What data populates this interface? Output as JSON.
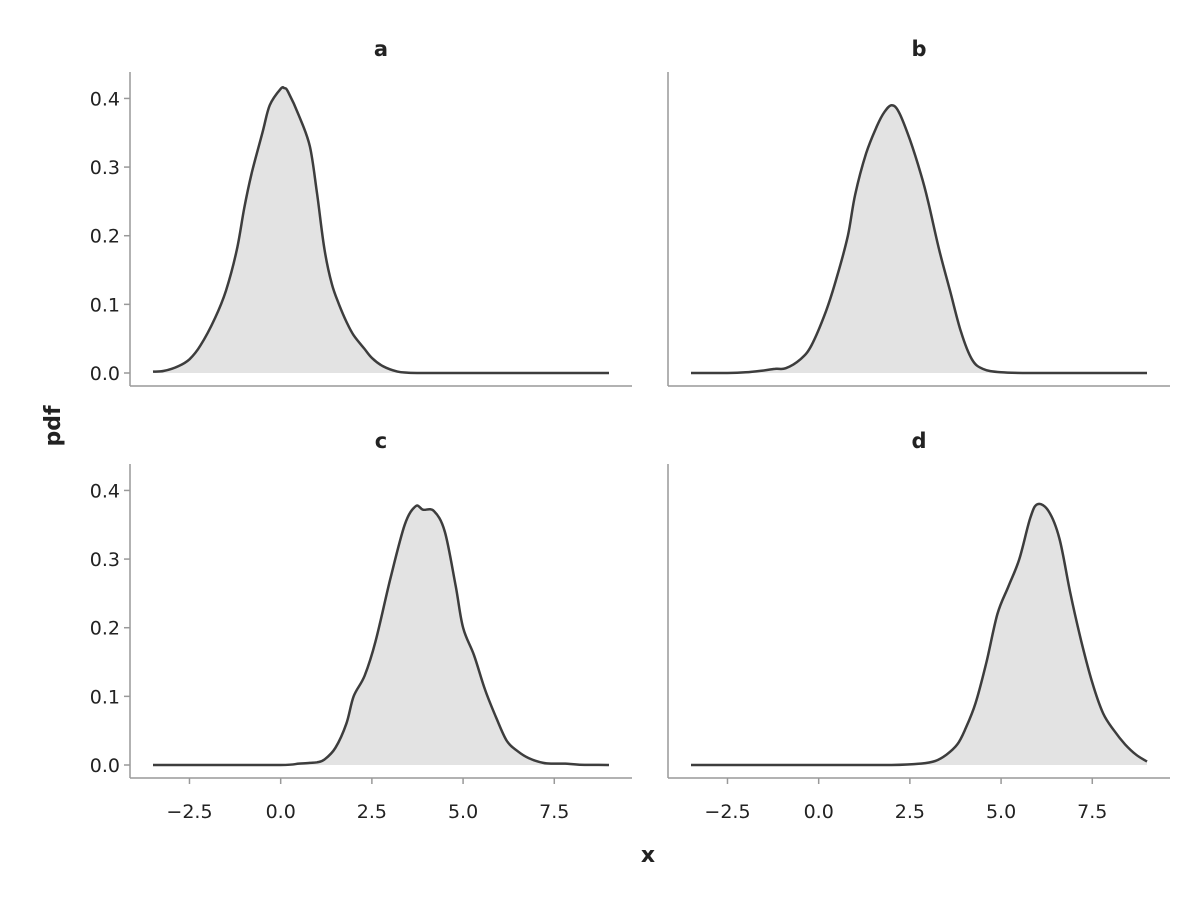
{
  "chart_data": {
    "type": "area",
    "xlabel": "x",
    "ylabel": "pdf",
    "xlim": [
      -3.5,
      9.0
    ],
    "ylim": [
      0.0,
      0.42
    ],
    "x_ticks": [
      -2.5,
      0.0,
      2.5,
      5.0,
      7.5
    ],
    "x_tick_labels": [
      "−2.5",
      "0.0",
      "2.5",
      "5.0",
      "7.5"
    ],
    "y_ticks": [
      0.0,
      0.1,
      0.2,
      0.3,
      0.4
    ],
    "y_tick_labels": [
      "0.0",
      "0.1",
      "0.2",
      "0.3",
      "0.4"
    ],
    "grid": false,
    "colors": {
      "fill": "#e3e3e3",
      "line": "#3d3d3d",
      "axis": "#999999"
    },
    "panels": [
      {
        "title": "a",
        "x": [
          -3.5,
          -3.2,
          -2.8,
          -2.5,
          -2.2,
          -1.8,
          -1.5,
          -1.2,
          -1.0,
          -0.8,
          -0.5,
          -0.3,
          0.0,
          0.1,
          0.2,
          0.5,
          0.8,
          1.0,
          1.2,
          1.4,
          1.6,
          1.8,
          2.0,
          2.3,
          2.5,
          2.8,
          3.2,
          3.5,
          4.0,
          5.0,
          6.0,
          7.0,
          8.0,
          9.0
        ],
        "y": [
          0.002,
          0.003,
          0.01,
          0.02,
          0.04,
          0.08,
          0.12,
          0.18,
          0.24,
          0.29,
          0.35,
          0.39,
          0.414,
          0.415,
          0.41,
          0.375,
          0.33,
          0.26,
          0.18,
          0.13,
          0.1,
          0.075,
          0.055,
          0.035,
          0.022,
          0.01,
          0.002,
          0.0005,
          0.0,
          0.0,
          0.0,
          0.0,
          0.0,
          0.0
        ]
      },
      {
        "title": "b",
        "x": [
          -3.5,
          -2.5,
          -2.0,
          -1.6,
          -1.2,
          -0.9,
          -0.5,
          -0.2,
          0.2,
          0.5,
          0.8,
          1.0,
          1.3,
          1.6,
          1.8,
          2.0,
          2.2,
          2.5,
          2.8,
          3.0,
          3.3,
          3.6,
          3.9,
          4.2,
          4.5,
          5.0,
          6.0,
          7.0,
          8.0,
          9.0
        ],
        "y": [
          0.0,
          0.0,
          0.001,
          0.003,
          0.006,
          0.007,
          0.02,
          0.04,
          0.09,
          0.14,
          0.2,
          0.26,
          0.32,
          0.36,
          0.38,
          0.39,
          0.38,
          0.34,
          0.29,
          0.25,
          0.18,
          0.12,
          0.06,
          0.02,
          0.006,
          0.001,
          0.0,
          0.0,
          0.0,
          0.0
        ]
      },
      {
        "title": "c",
        "x": [
          -3.5,
          -2.0,
          0.0,
          0.5,
          0.8,
          1.0,
          1.2,
          1.5,
          1.8,
          2.0,
          2.3,
          2.6,
          3.0,
          3.4,
          3.7,
          3.9,
          4.2,
          4.5,
          4.8,
          5.0,
          5.3,
          5.6,
          5.9,
          6.2,
          6.5,
          6.8,
          7.2,
          7.5,
          7.8,
          8.2,
          9.0
        ],
        "y": [
          0.0,
          0.0,
          0.0,
          0.002,
          0.003,
          0.004,
          0.008,
          0.025,
          0.06,
          0.1,
          0.13,
          0.18,
          0.27,
          0.35,
          0.377,
          0.372,
          0.37,
          0.34,
          0.26,
          0.2,
          0.16,
          0.11,
          0.07,
          0.035,
          0.02,
          0.01,
          0.003,
          0.002,
          0.002,
          0.0005,
          0.0
        ]
      },
      {
        "title": "d",
        "x": [
          -3.5,
          0.0,
          2.0,
          2.8,
          3.2,
          3.5,
          3.8,
          4.0,
          4.3,
          4.6,
          4.9,
          5.2,
          5.5,
          5.8,
          6.0,
          6.3,
          6.6,
          6.9,
          7.2,
          7.5,
          7.8,
          8.1,
          8.4,
          8.7,
          9.0
        ],
        "y": [
          0.0,
          0.0,
          0.0,
          0.002,
          0.006,
          0.015,
          0.03,
          0.05,
          0.09,
          0.15,
          0.22,
          0.26,
          0.3,
          0.36,
          0.38,
          0.37,
          0.33,
          0.25,
          0.18,
          0.12,
          0.075,
          0.05,
          0.03,
          0.015,
          0.005
        ]
      }
    ]
  }
}
